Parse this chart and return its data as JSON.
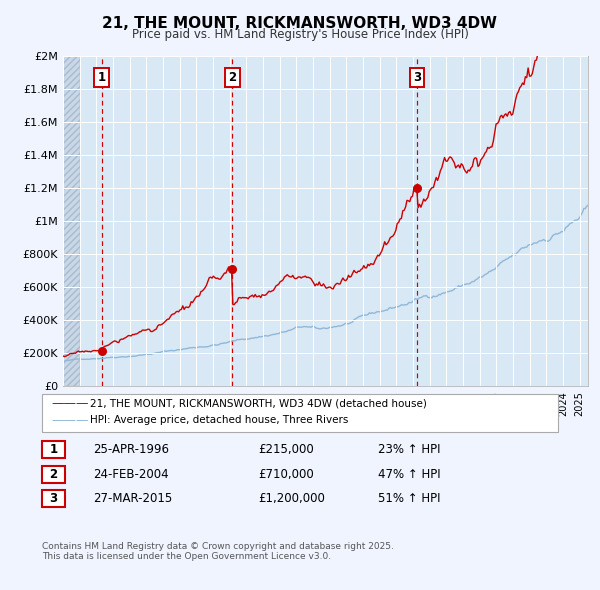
{
  "title": "21, THE MOUNT, RICKMANSWORTH, WD3 4DW",
  "subtitle": "Price paid vs. HM Land Registry's House Price Index (HPI)",
  "background_color": "#f0f4ff",
  "plot_bg_color": "#d8e8f5",
  "ylim": [
    0,
    2000000
  ],
  "yticks": [
    0,
    200000,
    400000,
    600000,
    800000,
    1000000,
    1200000,
    1400000,
    1600000,
    1800000,
    2000000
  ],
  "ytick_labels": [
    "£0",
    "£200K",
    "£400K",
    "£600K",
    "£800K",
    "£1M",
    "£1.2M",
    "£1.4M",
    "£1.6M",
    "£1.8M",
    "£2M"
  ],
  "xlim_start": 1994.0,
  "xlim_end": 2025.5,
  "sale_dates": [
    1996.32,
    2004.15,
    2015.24
  ],
  "sale_prices": [
    215000,
    710000,
    1200000
  ],
  "sale_labels": [
    "1",
    "2",
    "3"
  ],
  "vline_color": "#cc0000",
  "sale_dot_color": "#cc0000",
  "hpi_line_color": "#90b8d8",
  "price_line_color": "#cc0000",
  "legend_label_price": "21, THE MOUNT, RICKMANSWORTH, WD3 4DW (detached house)",
  "legend_label_hpi": "HPI: Average price, detached house, Three Rivers",
  "table_rows": [
    {
      "label": "1",
      "date": "25-APR-1996",
      "price": "£215,000",
      "change": "23% ↑ HPI"
    },
    {
      "label": "2",
      "date": "24-FEB-2004",
      "price": "£710,000",
      "change": "47% ↑ HPI"
    },
    {
      "label": "3",
      "date": "27-MAR-2015",
      "price": "£1,200,000",
      "change": "51% ↑ HPI"
    }
  ],
  "footnote": "Contains HM Land Registry data © Crown copyright and database right 2025.\nThis data is licensed under the Open Government Licence v3.0."
}
